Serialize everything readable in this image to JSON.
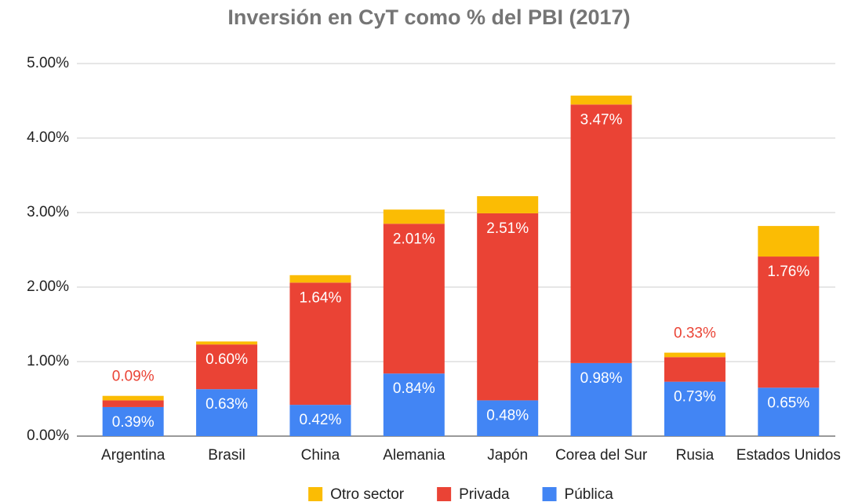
{
  "chart_data": {
    "type": "stacked_bar",
    "title": "Inversión en CyT como % del PBI (2017)",
    "categories": [
      "Argentina",
      "Brasil",
      "China",
      "Alemania",
      "Japón",
      "Corea del Sur",
      "Rusia",
      "Estados Unidos"
    ],
    "series": [
      {
        "name": "Otro sector",
        "color": "#fbbc04",
        "values": [
          0.06,
          0.04,
          0.1,
          0.19,
          0.23,
          0.12,
          0.06,
          0.41
        ]
      },
      {
        "name": "Privada",
        "color": "#ea4335",
        "values": [
          0.09,
          0.6,
          1.64,
          2.01,
          2.51,
          3.47,
          0.33,
          1.76
        ],
        "value_labels": [
          "0.09%",
          "0.60%",
          "1.64%",
          "2.01%",
          "2.51%",
          "3.47%",
          "0.33%",
          "1.76%"
        ]
      },
      {
        "name": "Pública",
        "color": "#4285f4",
        "values": [
          0.39,
          0.63,
          0.42,
          0.84,
          0.48,
          0.98,
          0.73,
          0.65
        ],
        "value_labels": [
          "0.39%",
          "0.63%",
          "0.42%",
          "0.84%",
          "0.48%",
          "0.98%",
          "0.73%",
          "0.65%"
        ]
      }
    ],
    "ylim": [
      0,
      5
    ],
    "yticks": [
      {
        "value": 0,
        "label": "0.00%"
      },
      {
        "value": 1,
        "label": "1.00%"
      },
      {
        "value": 2,
        "label": "2.00%"
      },
      {
        "value": 3,
        "label": "3.00%"
      },
      {
        "value": 4,
        "label": "4.00%"
      },
      {
        "value": 5,
        "label": "5.00%"
      }
    ],
    "grid": true,
    "legend": "bottom"
  }
}
